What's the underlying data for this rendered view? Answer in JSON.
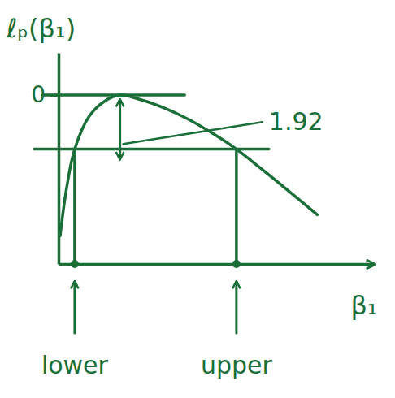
{
  "chart_data": {
    "type": "line",
    "y_label": "ℓₚ(β₁)",
    "x_label": "β₁",
    "x": [
      0.1,
      0.5,
      1,
      1.9,
      2.9,
      3.8,
      5,
      6.5,
      8,
      9.5,
      11,
      12.5,
      14,
      16
    ],
    "values": [
      -5,
      -3.3,
      -1.92,
      -0.75,
      -0.2,
      0,
      -0.15,
      -0.45,
      -0.85,
      -1.35,
      -1.92,
      -2.6,
      -3.3,
      -4.25
    ],
    "color": "#1a6e38",
    "xlim": [
      0,
      19.5
    ],
    "ylim": [
      -6,
      1.5
    ],
    "yticks": [
      0
    ],
    "xticks": [
      {
        "value": 1,
        "label": "lower"
      },
      {
        "value": 11,
        "label": "upper"
      }
    ],
    "grid": true,
    "cutoff": -1.92,
    "annotations": [
      {
        "text": "1.92"
      }
    ]
  }
}
